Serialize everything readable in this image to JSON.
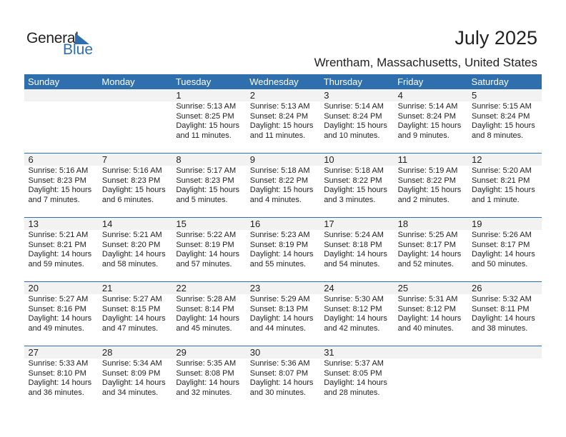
{
  "logo": {
    "general": "General",
    "blue": "Blue",
    "accent": "#2f6fad"
  },
  "title": "July 2025",
  "location": "Wrentham, Massachusetts, United States",
  "days": [
    "Sunday",
    "Monday",
    "Tuesday",
    "Wednesday",
    "Thursday",
    "Friday",
    "Saturday"
  ],
  "weeks": [
    [
      null,
      null,
      {
        "day": "1",
        "sunrise": "Sunrise: 5:13 AM",
        "sunset": "Sunset: 8:25 PM",
        "daylight": "Daylight: 15 hours",
        "minutes": "and 11 minutes."
      },
      {
        "day": "2",
        "sunrise": "Sunrise: 5:13 AM",
        "sunset": "Sunset: 8:24 PM",
        "daylight": "Daylight: 15 hours",
        "minutes": "and 11 minutes."
      },
      {
        "day": "3",
        "sunrise": "Sunrise: 5:14 AM",
        "sunset": "Sunset: 8:24 PM",
        "daylight": "Daylight: 15 hours",
        "minutes": "and 10 minutes."
      },
      {
        "day": "4",
        "sunrise": "Sunrise: 5:14 AM",
        "sunset": "Sunset: 8:24 PM",
        "daylight": "Daylight: 15 hours",
        "minutes": "and 9 minutes."
      },
      {
        "day": "5",
        "sunrise": "Sunrise: 5:15 AM",
        "sunset": "Sunset: 8:24 PM",
        "daylight": "Daylight: 15 hours",
        "minutes": "and 8 minutes."
      }
    ],
    [
      {
        "day": "6",
        "sunrise": "Sunrise: 5:16 AM",
        "sunset": "Sunset: 8:23 PM",
        "daylight": "Daylight: 15 hours",
        "minutes": "and 7 minutes."
      },
      {
        "day": "7",
        "sunrise": "Sunrise: 5:16 AM",
        "sunset": "Sunset: 8:23 PM",
        "daylight": "Daylight: 15 hours",
        "minutes": "and 6 minutes."
      },
      {
        "day": "8",
        "sunrise": "Sunrise: 5:17 AM",
        "sunset": "Sunset: 8:23 PM",
        "daylight": "Daylight: 15 hours",
        "minutes": "and 5 minutes."
      },
      {
        "day": "9",
        "sunrise": "Sunrise: 5:18 AM",
        "sunset": "Sunset: 8:22 PM",
        "daylight": "Daylight: 15 hours",
        "minutes": "and 4 minutes."
      },
      {
        "day": "10",
        "sunrise": "Sunrise: 5:18 AM",
        "sunset": "Sunset: 8:22 PM",
        "daylight": "Daylight: 15 hours",
        "minutes": "and 3 minutes."
      },
      {
        "day": "11",
        "sunrise": "Sunrise: 5:19 AM",
        "sunset": "Sunset: 8:22 PM",
        "daylight": "Daylight: 15 hours",
        "minutes": "and 2 minutes."
      },
      {
        "day": "12",
        "sunrise": "Sunrise: 5:20 AM",
        "sunset": "Sunset: 8:21 PM",
        "daylight": "Daylight: 15 hours",
        "minutes": "and 1 minute."
      }
    ],
    [
      {
        "day": "13",
        "sunrise": "Sunrise: 5:21 AM",
        "sunset": "Sunset: 8:21 PM",
        "daylight": "Daylight: 14 hours",
        "minutes": "and 59 minutes."
      },
      {
        "day": "14",
        "sunrise": "Sunrise: 5:21 AM",
        "sunset": "Sunset: 8:20 PM",
        "daylight": "Daylight: 14 hours",
        "minutes": "and 58 minutes."
      },
      {
        "day": "15",
        "sunrise": "Sunrise: 5:22 AM",
        "sunset": "Sunset: 8:19 PM",
        "daylight": "Daylight: 14 hours",
        "minutes": "and 57 minutes."
      },
      {
        "day": "16",
        "sunrise": "Sunrise: 5:23 AM",
        "sunset": "Sunset: 8:19 PM",
        "daylight": "Daylight: 14 hours",
        "minutes": "and 55 minutes."
      },
      {
        "day": "17",
        "sunrise": "Sunrise: 5:24 AM",
        "sunset": "Sunset: 8:18 PM",
        "daylight": "Daylight: 14 hours",
        "minutes": "and 54 minutes."
      },
      {
        "day": "18",
        "sunrise": "Sunrise: 5:25 AM",
        "sunset": "Sunset: 8:17 PM",
        "daylight": "Daylight: 14 hours",
        "minutes": "and 52 minutes."
      },
      {
        "day": "19",
        "sunrise": "Sunrise: 5:26 AM",
        "sunset": "Sunset: 8:17 PM",
        "daylight": "Daylight: 14 hours",
        "minutes": "and 50 minutes."
      }
    ],
    [
      {
        "day": "20",
        "sunrise": "Sunrise: 5:27 AM",
        "sunset": "Sunset: 8:16 PM",
        "daylight": "Daylight: 14 hours",
        "minutes": "and 49 minutes."
      },
      {
        "day": "21",
        "sunrise": "Sunrise: 5:27 AM",
        "sunset": "Sunset: 8:15 PM",
        "daylight": "Daylight: 14 hours",
        "minutes": "and 47 minutes."
      },
      {
        "day": "22",
        "sunrise": "Sunrise: 5:28 AM",
        "sunset": "Sunset: 8:14 PM",
        "daylight": "Daylight: 14 hours",
        "minutes": "and 45 minutes."
      },
      {
        "day": "23",
        "sunrise": "Sunrise: 5:29 AM",
        "sunset": "Sunset: 8:13 PM",
        "daylight": "Daylight: 14 hours",
        "minutes": "and 44 minutes."
      },
      {
        "day": "24",
        "sunrise": "Sunrise: 5:30 AM",
        "sunset": "Sunset: 8:12 PM",
        "daylight": "Daylight: 14 hours",
        "minutes": "and 42 minutes."
      },
      {
        "day": "25",
        "sunrise": "Sunrise: 5:31 AM",
        "sunset": "Sunset: 8:12 PM",
        "daylight": "Daylight: 14 hours",
        "minutes": "and 40 minutes."
      },
      {
        "day": "26",
        "sunrise": "Sunrise: 5:32 AM",
        "sunset": "Sunset: 8:11 PM",
        "daylight": "Daylight: 14 hours",
        "minutes": "and 38 minutes."
      }
    ],
    [
      {
        "day": "27",
        "sunrise": "Sunrise: 5:33 AM",
        "sunset": "Sunset: 8:10 PM",
        "daylight": "Daylight: 14 hours",
        "minutes": "and 36 minutes."
      },
      {
        "day": "28",
        "sunrise": "Sunrise: 5:34 AM",
        "sunset": "Sunset: 8:09 PM",
        "daylight": "Daylight: 14 hours",
        "minutes": "and 34 minutes."
      },
      {
        "day": "29",
        "sunrise": "Sunrise: 5:35 AM",
        "sunset": "Sunset: 8:08 PM",
        "daylight": "Daylight: 14 hours",
        "minutes": "and 32 minutes."
      },
      {
        "day": "30",
        "sunrise": "Sunrise: 5:36 AM",
        "sunset": "Sunset: 8:07 PM",
        "daylight": "Daylight: 14 hours",
        "minutes": "and 30 minutes."
      },
      {
        "day": "31",
        "sunrise": "Sunrise: 5:37 AM",
        "sunset": "Sunset: 8:05 PM",
        "daylight": "Daylight: 14 hours",
        "minutes": "and 28 minutes."
      },
      null,
      null
    ]
  ]
}
